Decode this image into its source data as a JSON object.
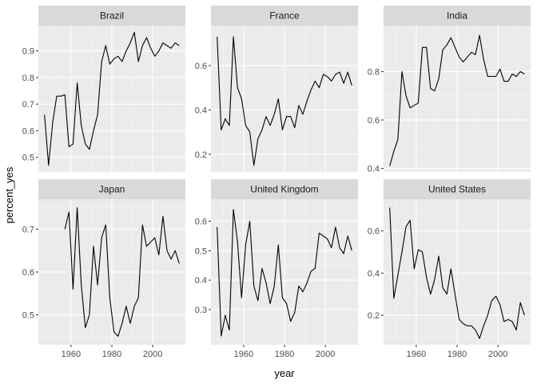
{
  "chart_data": {
    "type": "line",
    "xlabel": "year",
    "ylabel": "percent_yes",
    "x_ticks": [
      1960,
      1980,
      2000
    ],
    "xlim": [
      1944,
      2016
    ],
    "layout": "facet grid 3 columns x 2 rows, free y scales",
    "grid": true,
    "colors": {
      "panel": "#ebebeb",
      "strip": "#d9d9d9",
      "grid_major": "#ffffff",
      "grid_minor": "#f5f5f5",
      "line": "#000000"
    },
    "x": [
      1947,
      1949,
      1951,
      1953,
      1955,
      1957,
      1959,
      1961,
      1963,
      1965,
      1967,
      1969,
      1971,
      1973,
      1975,
      1977,
      1979,
      1981,
      1983,
      1985,
      1987,
      1989,
      1991,
      1993,
      1995,
      1997,
      1999,
      2001,
      2003,
      2005,
      2007,
      2009,
      2011,
      2013
    ],
    "facets": [
      {
        "name": "Brazil",
        "y_ticks": [
          0.5,
          0.6,
          0.7,
          0.8,
          0.9
        ],
        "ylim": [
          0.445,
          0.995
        ],
        "values": [
          0.66,
          0.47,
          0.63,
          0.73,
          0.73,
          0.735,
          0.54,
          0.55,
          0.78,
          0.62,
          0.55,
          0.53,
          0.6,
          0.66,
          0.86,
          0.92,
          0.85,
          0.87,
          0.88,
          0.86,
          0.9,
          0.93,
          0.97,
          0.86,
          0.92,
          0.95,
          0.91,
          0.88,
          0.9,
          0.93,
          0.92,
          0.91,
          0.93,
          0.92
        ]
      },
      {
        "name": "France",
        "y_ticks": [
          0.2,
          0.4,
          0.6
        ],
        "ylim": [
          0.12,
          0.78
        ],
        "values": [
          0.73,
          0.31,
          0.36,
          0.33,
          0.73,
          0.5,
          0.45,
          0.33,
          0.3,
          0.15,
          0.27,
          0.31,
          0.37,
          0.33,
          0.38,
          0.45,
          0.31,
          0.37,
          0.37,
          0.32,
          0.42,
          0.38,
          0.44,
          0.49,
          0.53,
          0.5,
          0.56,
          0.55,
          0.53,
          0.56,
          0.57,
          0.52,
          0.57,
          0.51
        ]
      },
      {
        "name": "India",
        "y_ticks": [
          0.4,
          0.6,
          0.8
        ],
        "ylim": [
          0.385,
          0.99
        ],
        "values": [
          0.41,
          0.47,
          0.52,
          0.8,
          0.7,
          0.65,
          0.66,
          0.67,
          0.9,
          0.9,
          0.73,
          0.72,
          0.77,
          0.89,
          0.91,
          0.94,
          0.9,
          0.86,
          0.84,
          0.86,
          0.88,
          0.87,
          0.95,
          0.85,
          0.78,
          0.78,
          0.78,
          0.81,
          0.76,
          0.76,
          0.79,
          0.78,
          0.8,
          0.79
        ]
      },
      {
        "name": "Japan",
        "y_ticks": [
          0.5,
          0.6,
          0.7
        ],
        "ylim": [
          0.43,
          0.77
        ],
        "values": [
          null,
          null,
          null,
          null,
          null,
          0.7,
          0.74,
          0.56,
          0.75,
          0.57,
          0.47,
          0.5,
          0.66,
          0.57,
          0.68,
          0.71,
          0.54,
          0.46,
          0.45,
          0.48,
          0.52,
          0.48,
          0.52,
          0.54,
          0.71,
          0.66,
          0.67,
          0.68,
          0.64,
          0.73,
          0.65,
          0.63,
          0.65,
          0.62
        ]
      },
      {
        "name": "United Kingdom",
        "y_ticks": [
          0.3,
          0.4,
          0.5,
          0.6
        ],
        "ylim": [
          0.18,
          0.675
        ],
        "values": [
          0.58,
          0.21,
          0.28,
          0.23,
          0.64,
          0.53,
          0.34,
          0.52,
          0.6,
          0.38,
          0.33,
          0.44,
          0.39,
          0.32,
          0.38,
          0.52,
          0.34,
          0.32,
          0.26,
          0.29,
          0.38,
          0.36,
          0.39,
          0.43,
          0.44,
          0.56,
          0.55,
          0.54,
          0.51,
          0.58,
          0.51,
          0.49,
          0.55,
          0.5
        ]
      },
      {
        "name": "United States",
        "y_ticks": [
          0.2,
          0.4,
          0.6
        ],
        "ylim": [
          0.06,
          0.75
        ],
        "values": [
          0.71,
          0.28,
          0.39,
          0.5,
          0.62,
          0.65,
          0.42,
          0.51,
          0.5,
          0.38,
          0.3,
          0.37,
          0.48,
          0.33,
          0.3,
          0.42,
          0.3,
          0.18,
          0.16,
          0.15,
          0.15,
          0.13,
          0.09,
          0.15,
          0.2,
          0.27,
          0.29,
          0.25,
          0.17,
          0.18,
          0.17,
          0.13,
          0.26,
          0.2
        ]
      }
    ]
  }
}
